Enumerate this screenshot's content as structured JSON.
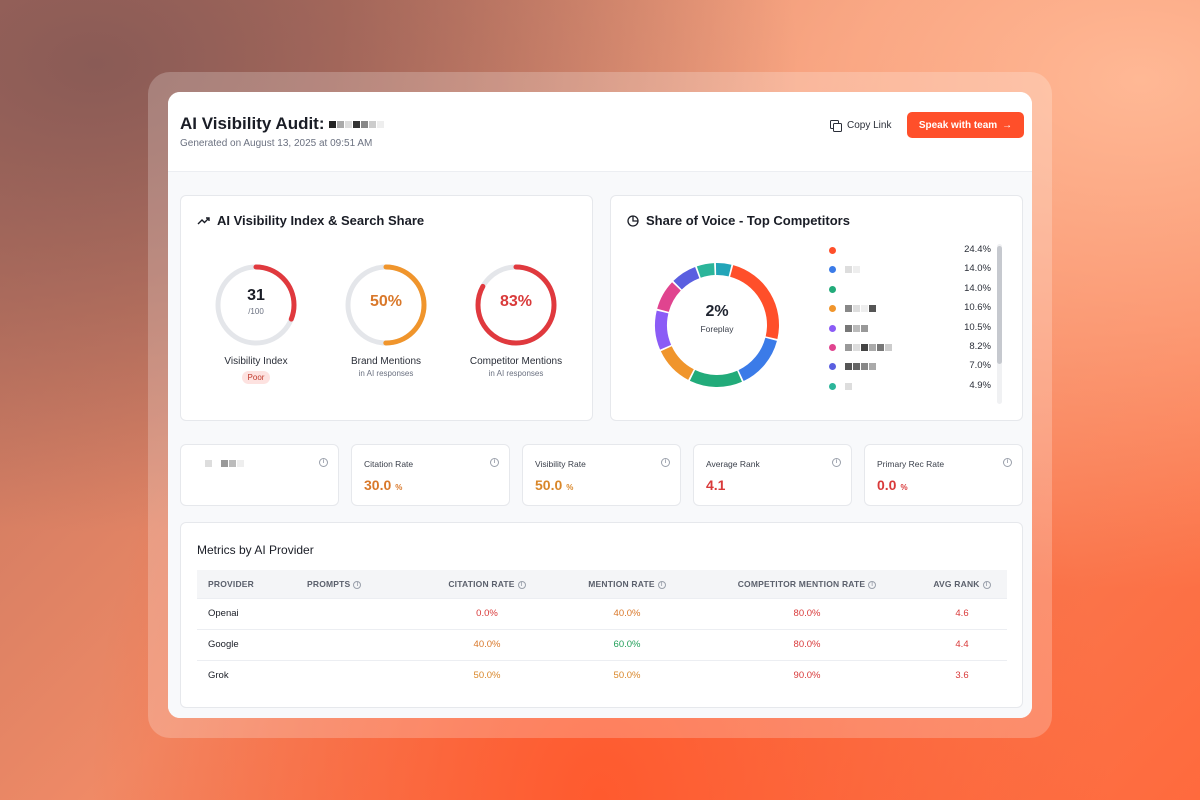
{
  "header": {
    "title": "AI Visibility Audit:",
    "generated": "Generated on August 13, 2025 at 09:51 AM",
    "copy_link_label": "Copy Link",
    "speak_label": "Speak with team",
    "speak_arrow": "→"
  },
  "visibility_panel": {
    "title": "AI Visibility Index & Search Share",
    "icon": "trending-up-icon",
    "gauges": [
      {
        "value_text": "31",
        "sub_text": "/100",
        "label": "Visibility Index",
        "sub_label": "",
        "badge": "Poor",
        "fraction": 0.31,
        "color": "#e0393e",
        "value_color": "#1a1d26"
      },
      {
        "value_text": "50%",
        "sub_text": "",
        "label": "Brand Mentions",
        "sub_label": "in AI responses",
        "badge": "",
        "fraction": 0.5,
        "color": "#f0952c",
        "value_color": "#d9782a"
      },
      {
        "value_text": "83%",
        "sub_text": "",
        "label": "Competitor Mentions",
        "sub_label": "in AI responses",
        "badge": "",
        "fraction": 0.83,
        "color": "#e0393e",
        "value_color": "#d93a3a"
      }
    ]
  },
  "share_panel": {
    "title": "Share of Voice - Top Competitors",
    "icon": "pie-chart-icon",
    "center_value": "2%",
    "center_label": "Foreplay",
    "competitors": [
      {
        "value": "24.4%",
        "share": 24.4,
        "color": "#ff4f2a"
      },
      {
        "value": "14.0%",
        "share": 14.0,
        "color": "#3b7be8"
      },
      {
        "value": "14.0%",
        "share": 14.0,
        "color": "#22ab7a"
      },
      {
        "value": "10.6%",
        "share": 10.6,
        "color": "#f0952c"
      },
      {
        "value": "10.5%",
        "share": 10.5,
        "color": "#8b5cf6"
      },
      {
        "value": "8.2%",
        "share": 8.2,
        "color": "#e0448f"
      },
      {
        "value": "7.0%",
        "share": 7.0,
        "color": "#5a5fe0"
      },
      {
        "value": "4.9%",
        "share": 4.9,
        "color": "#2bb59a"
      },
      {
        "value": "",
        "share": 4.4,
        "color": "#22a5b8"
      }
    ]
  },
  "metrics": [
    {
      "label": "",
      "value": "",
      "unit": "",
      "color": "#1a1d26"
    },
    {
      "label": "Citation Rate",
      "value": "30.0",
      "unit": "%",
      "color": "#d9782a"
    },
    {
      "label": "Visibility Rate",
      "value": "50.0",
      "unit": "%",
      "color": "#d9872a"
    },
    {
      "label": "Average Rank",
      "value": "4.1",
      "unit": "",
      "color": "#d93a3a"
    },
    {
      "label": "Primary Rec Rate",
      "value": "0.0",
      "unit": "%",
      "color": "#d93a3a"
    }
  ],
  "provider_table": {
    "title": "Metrics by AI Provider",
    "columns": [
      "Provider",
      "Prompts",
      "Citation Rate",
      "Mention Rate",
      "Competitor Mention Rate",
      "Avg Rank"
    ],
    "rows": [
      {
        "provider": "Openai",
        "prompts": "",
        "citation": "0.0%",
        "citation_color": "#d93a3a",
        "mention": "40.0%",
        "mention_color": "#d9782a",
        "competitor": "80.0%",
        "competitor_color": "#d93a3a",
        "rank": "4.6",
        "rank_color": "#d93a3a"
      },
      {
        "provider": "Google",
        "prompts": "",
        "citation": "40.0%",
        "citation_color": "#d9782a",
        "mention": "60.0%",
        "mention_color": "#22a05a",
        "competitor": "80.0%",
        "competitor_color": "#d93a3a",
        "rank": "4.4",
        "rank_color": "#d93a3a"
      },
      {
        "provider": "Grok",
        "prompts": "",
        "citation": "50.0%",
        "citation_color": "#d9872a",
        "mention": "50.0%",
        "mention_color": "#d9872a",
        "competitor": "90.0%",
        "competitor_color": "#d93a3a",
        "rank": "3.6",
        "rank_color": "#d93a3a"
      }
    ]
  }
}
